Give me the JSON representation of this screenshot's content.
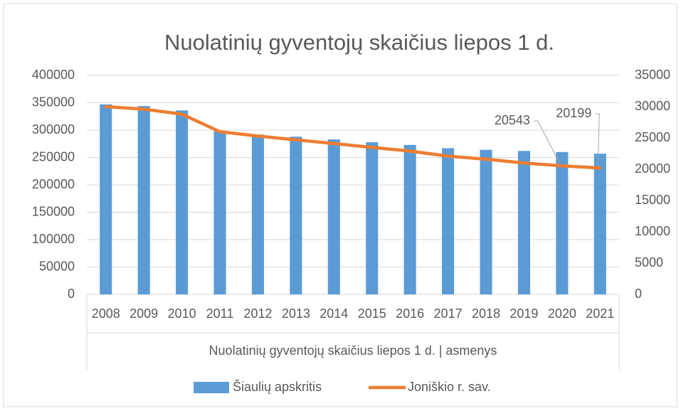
{
  "chart_data": {
    "type": "bar_line",
    "title": "Nuolatinių gyventojų skaičius liepos 1 d.",
    "x_label": "Nuolatinių gyventojų skaičius liepos 1 d. | asmenys",
    "categories": [
      "2008",
      "2009",
      "2010",
      "2011",
      "2012",
      "2013",
      "2014",
      "2015",
      "2016",
      "2017",
      "2018",
      "2019",
      "2020",
      "2021"
    ],
    "series": [
      {
        "name": "Šiaulių apskritis",
        "type": "bar",
        "color": "#5b9bd5",
        "axis": "y",
        "values": [
          347000,
          344000,
          336000,
          298000,
          292000,
          288000,
          283000,
          278000,
          273000,
          267000,
          264000,
          262000,
          260000,
          257000
        ]
      },
      {
        "name": "Joniškio r. sav.",
        "type": "line",
        "color": "#ed7d31",
        "axis": "y2",
        "values": [
          30000,
          29600,
          28800,
          26000,
          25300,
          24700,
          24100,
          23500,
          22900,
          22100,
          21600,
          21000,
          20543,
          20199
        ],
        "data_labels": [
          false,
          false,
          false,
          false,
          false,
          false,
          false,
          false,
          false,
          false,
          false,
          false,
          true,
          true
        ]
      }
    ],
    "ylim": [
      0,
      400000
    ],
    "yticks": [
      0,
      50000,
      100000,
      150000,
      200000,
      250000,
      300000,
      350000,
      400000
    ],
    "y2lim": [
      0,
      35000
    ],
    "y2ticks": [
      0,
      5000,
      10000,
      15000,
      20000,
      25000,
      30000,
      35000
    ],
    "grid": true,
    "legend": "bottom"
  }
}
